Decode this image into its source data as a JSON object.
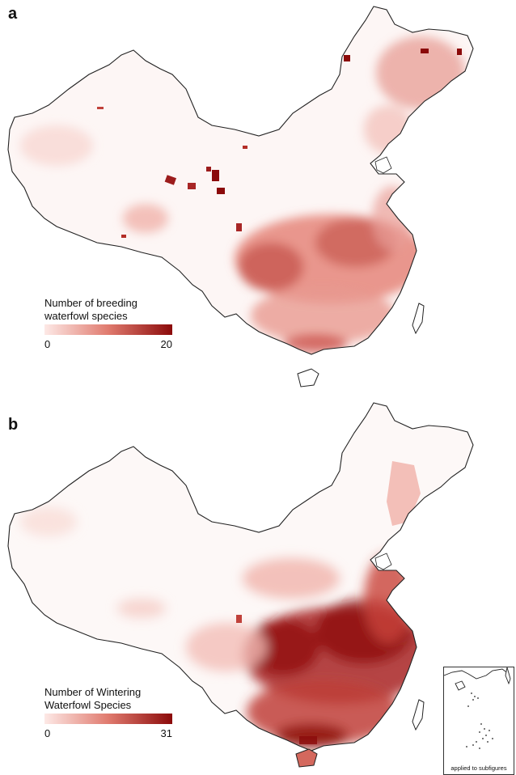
{
  "panel_a": {
    "letter": "a",
    "legend_title_line1": "Number of breeding",
    "legend_title_line2": "waterfowl species",
    "legend_min": "0",
    "legend_max": "20"
  },
  "panel_b": {
    "letter": "b",
    "legend_title_line1": "Number of Wintering",
    "legend_title_line2": "Waterfowl Species",
    "legend_min": "0",
    "legend_max": "31"
  },
  "inset": {
    "caption": "applied to subfigures"
  },
  "colors": {
    "low": "#fde9e6",
    "mid": "#e07a6e",
    "high": "#8b0a0a",
    "boundary": "#222222"
  }
}
